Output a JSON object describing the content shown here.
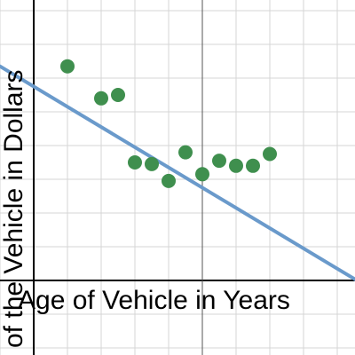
{
  "chart_data": {
    "type": "scatter",
    "title": "",
    "xlabel": "Age of Vehicle in Years",
    "ylabel": "of the Vehicle in Dollars",
    "grid": true,
    "colors": {
      "points": "#3f8f4e",
      "trendline": "#6a9acb",
      "axes": "#000000",
      "grid": "#d6d6d6"
    },
    "points": [
      {
        "x": 1.0,
        "y": 12.7
      },
      {
        "x": 2.0,
        "y": 10.8
      },
      {
        "x": 2.5,
        "y": 11.0
      },
      {
        "x": 3.0,
        "y": 7.0
      },
      {
        "x": 3.5,
        "y": 6.9
      },
      {
        "x": 4.0,
        "y": 5.9
      },
      {
        "x": 4.5,
        "y": 7.6
      },
      {
        "x": 5.0,
        "y": 6.3
      },
      {
        "x": 5.5,
        "y": 7.1
      },
      {
        "x": 6.0,
        "y": 6.8
      },
      {
        "x": 6.5,
        "y": 6.8
      },
      {
        "x": 7.0,
        "y": 7.5
      }
    ],
    "trendline": {
      "slope": -1.2,
      "intercept": 11.5
    }
  }
}
